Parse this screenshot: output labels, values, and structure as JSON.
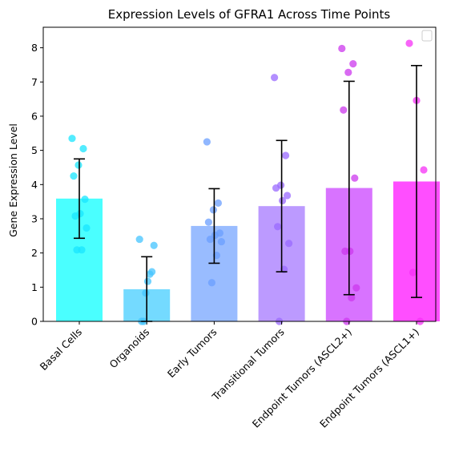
{
  "chart_data": {
    "type": "bar",
    "title": "Expression Levels of GFRA1 Across Time Points",
    "xlabel": "",
    "ylabel": "Gene Expression Level",
    "ylim": [
      0,
      8.6
    ],
    "yticks": [
      0,
      1,
      2,
      3,
      4,
      5,
      6,
      7,
      8
    ],
    "grid": false,
    "legend": "top-right (empty)",
    "categories": [
      "Basal Cells",
      "Organoids",
      "Early Tumors",
      "Transitional Tumors",
      "Endpoint Tumors (ASCL2+)",
      "Endpoint Tumors (ASCL1+)"
    ],
    "values": [
      3.59,
      0.94,
      2.79,
      3.37,
      3.9,
      4.09
    ],
    "error": [
      1.16,
      0.95,
      1.09,
      1.92,
      3.12,
      3.39
    ],
    "bar_colors": [
      "#40ffff",
      "#6dd8ff",
      "#93b8ff",
      "#b895ff",
      "#d66cff",
      "#ff44ff"
    ],
    "point_colors": [
      "#1ae5ff",
      "#44c4ff",
      "#6b9fff",
      "#9a6aff",
      "#cc38ee",
      "#f530f5"
    ],
    "points": [
      [
        5.35,
        5.05,
        4.57,
        4.25,
        3.57,
        3.15,
        3.08,
        2.73,
        2.09,
        2.09
      ],
      [
        2.4,
        2.22,
        1.45,
        1.38,
        1.17,
        0.83,
        0.0,
        0.0
      ],
      [
        5.25,
        3.46,
        3.26,
        2.9,
        2.58,
        2.52,
        2.4,
        2.33,
        1.93,
        1.13
      ],
      [
        7.13,
        4.85,
        3.98,
        3.9,
        3.68,
        3.53,
        2.77,
        2.28,
        1.52,
        0.0
      ],
      [
        7.98,
        7.53,
        7.28,
        6.18,
        4.19,
        2.05,
        2.05,
        0.98,
        0.69,
        0.0
      ],
      [
        8.13,
        6.46,
        4.43,
        1.43,
        0.0
      ]
    ]
  }
}
